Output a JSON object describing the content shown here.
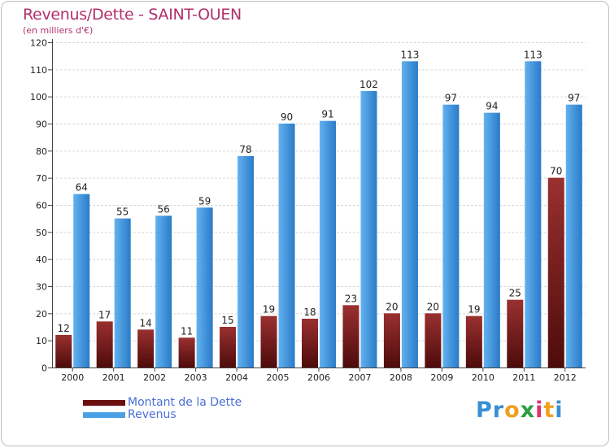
{
  "header": {
    "title": "Revenus/Dette - SAINT-OUEN",
    "subtitle": "(en milliers d'€)"
  },
  "legend": [
    {
      "label": "Montant de la Dette",
      "color": "#7a1a1a"
    },
    {
      "label": "Revenus",
      "color": "#4aa0e6"
    }
  ],
  "logo": {
    "letters": [
      {
        "char": "P",
        "color": "#3a8fd0"
      },
      {
        "char": "r",
        "color": "#3a8fd0"
      },
      {
        "char": "o",
        "color": "#f0a020"
      },
      {
        "char": "x",
        "color": "#2aa040"
      },
      {
        "char": "i",
        "color": "#e03070"
      },
      {
        "char": "t",
        "color": "#f0a020"
      },
      {
        "char": "i",
        "color": "#3a8fd0"
      }
    ]
  },
  "chart_data": {
    "type": "bar",
    "title": "Revenus/Dette - SAINT-OUEN",
    "subtitle": "(en milliers d'€)",
    "categories": [
      "2000",
      "2001",
      "2002",
      "2003",
      "2004",
      "2005",
      "2006",
      "2007",
      "2008",
      "2009",
      "2010",
      "2011",
      "2012"
    ],
    "series": [
      {
        "name": "Montant de la Dette",
        "color_dark": "#4e0b0b",
        "color_light": "#9a3030",
        "values": [
          12,
          17,
          14,
          11,
          15,
          19,
          18,
          23,
          20,
          20,
          19,
          25,
          70
        ]
      },
      {
        "name": "Revenus",
        "color_dark": "#2a7ac8",
        "color_light": "#62b2f0",
        "values": [
          64,
          55,
          56,
          59,
          78,
          90,
          91,
          102,
          113,
          97,
          94,
          113,
          97
        ]
      }
    ],
    "ylim": [
      0,
      120
    ],
    "yticks": [
      0,
      10,
      20,
      30,
      40,
      50,
      60,
      70,
      80,
      90,
      100,
      110,
      120
    ],
    "grid": true,
    "legend_position": "bottom-left"
  }
}
